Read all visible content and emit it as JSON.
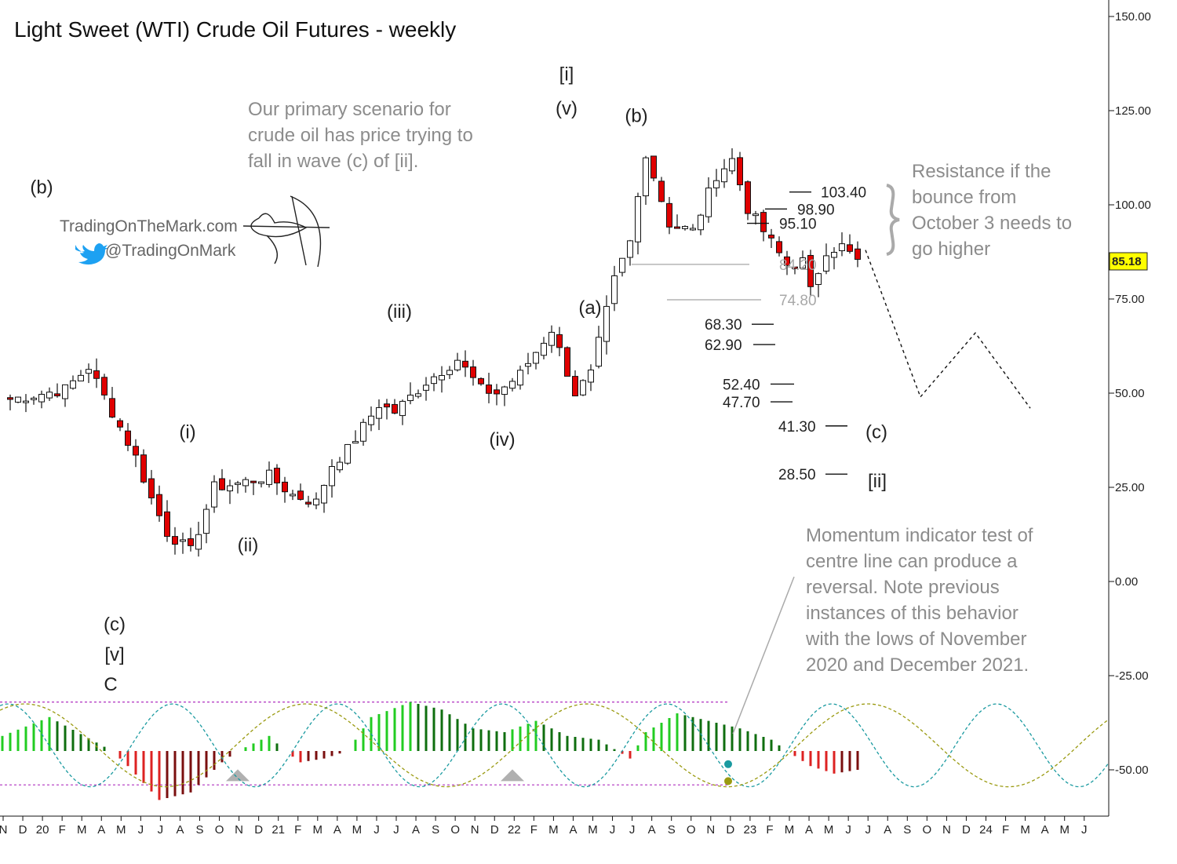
{
  "title": "Light Sweet (WTI) Crude Oil Futures - weekly",
  "branding": {
    "site": "TradingOnTheMark.com",
    "twitter": "@TradingOnMark",
    "logo_icon": "archer-bow-icon",
    "twitter_icon": "twitter-bird-icon"
  },
  "annotations": {
    "primary": [
      "Our primary scenario for",
      "crude oil has price trying to",
      "fall in wave (c) of [ii]."
    ],
    "resistance": [
      "Resistance if the",
      "bounce from",
      "October 3 needs to",
      "go higher"
    ],
    "momentum": [
      "Momentum indicator test of",
      "centre line can produce a",
      "reversal. Note previous",
      "instances of this behavior",
      "with the lows of November",
      "2020 and December 2021."
    ]
  },
  "colors": {
    "bear_candle": "#e00000",
    "bull_candle": "#ffffff",
    "bull_hist": "#22cc22",
    "bull_hist_dark": "#0f6e0f",
    "bear_hist": "#dd2222",
    "bear_hist_dark": "#7a0f0f",
    "cycle_teal": "#1a9aa0",
    "cycle_olive": "#9a9a10",
    "band": "#b030c0",
    "price_badge": "#ffff00"
  },
  "chart_data": {
    "type": "candlestick",
    "title": "Light Sweet (WTI) Crude Oil Futures - weekly",
    "y_axis": {
      "ticks": [
        "150.00",
        "125.00",
        "100.00",
        "75.00",
        "50.00",
        "25.00",
        "0.00",
        "-25.00",
        "-50.00"
      ],
      "range": [
        -62,
        153
      ]
    },
    "last_price": "85.18",
    "months": [
      "N",
      "D",
      "20",
      "F",
      "M",
      "A",
      "M",
      "J",
      "J",
      "A",
      "S",
      "O",
      "N",
      "D",
      "21",
      "F",
      "M",
      "A",
      "M",
      "J",
      "J",
      "A",
      "S",
      "O",
      "N",
      "D",
      "22",
      "F",
      "M",
      "A",
      "M",
      "J",
      "J",
      "A",
      "S",
      "O",
      "N",
      "D",
      "23",
      "F",
      "M",
      "A",
      "M",
      "J",
      "J",
      "A",
      "S",
      "O",
      "N",
      "D",
      "24",
      "F",
      "M",
      "A",
      "M",
      "J"
    ],
    "anchors": [
      [
        0,
        48
      ],
      [
        8,
        51
      ],
      [
        11,
        57
      ],
      [
        14,
        45
      ],
      [
        17,
        33
      ],
      [
        19,
        22
      ],
      [
        21,
        13
      ],
      [
        24,
        8
      ],
      [
        27,
        25
      ],
      [
        30,
        26
      ],
      [
        34,
        28
      ],
      [
        37,
        23
      ],
      [
        40,
        21
      ],
      [
        42,
        31
      ],
      [
        44,
        35
      ],
      [
        48,
        47
      ],
      [
        50,
        45
      ],
      [
        54,
        53
      ],
      [
        58,
        59
      ],
      [
        61,
        51
      ],
      [
        63,
        50
      ],
      [
        66,
        55
      ],
      [
        70,
        67
      ],
      [
        73,
        50
      ],
      [
        75,
        55
      ],
      [
        78,
        80
      ],
      [
        80,
        90
      ],
      [
        82,
        114
      ],
      [
        85,
        95
      ],
      [
        88,
        93
      ],
      [
        91,
        108
      ],
      [
        93,
        112
      ],
      [
        95,
        99
      ],
      [
        98,
        90
      ],
      [
        100,
        84
      ],
      [
        102,
        85
      ],
      [
        103,
        77
      ],
      [
        105,
        88
      ],
      [
        107,
        89
      ],
      [
        109,
        85
      ]
    ],
    "wave_labels": [
      {
        "text": "(b)",
        "value": 103
      },
      {
        "text": "(c)",
        "value": -13
      },
      {
        "text": "[v]",
        "value": -21
      },
      {
        "text": "C",
        "value": -29
      },
      {
        "text": "(i)",
        "value": 38
      },
      {
        "text": "(ii)",
        "value": 8
      },
      {
        "text": "(iii)",
        "value": 70
      },
      {
        "text": "(iv)",
        "value": 36
      },
      {
        "text": "[i]",
        "value": 133
      },
      {
        "text": "(v)",
        "value": 124
      },
      {
        "text": "(a)",
        "value": 71
      },
      {
        "text": "(b)",
        "value": 122
      },
      {
        "text": "(c)",
        "value": 38
      },
      {
        "text": "[ii]",
        "value": 25
      }
    ],
    "levels": [
      {
        "label": "103.40",
        "value": 103.4
      },
      {
        "label": "98.90",
        "value": 98.9
      },
      {
        "label": "95.10",
        "value": 95.1
      },
      {
        "label": "84.20",
        "value": 84.2,
        "style": "grey"
      },
      {
        "label": "74.80",
        "value": 74.8,
        "style": "grey"
      },
      {
        "label": "68.30",
        "value": 68.3
      },
      {
        "label": "62.90",
        "value": 62.9
      },
      {
        "label": "52.40",
        "value": 52.4
      },
      {
        "label": "47.70",
        "value": 47.7
      },
      {
        "label": "41.30",
        "value": 41.3
      },
      {
        "label": "28.50",
        "value": 28.5
      }
    ],
    "projection": [
      [
        110,
        88
      ],
      [
        117,
        49
      ],
      [
        124,
        66
      ],
      [
        131,
        46
      ]
    ],
    "indicator": {
      "type": "momentum-histogram",
      "centre": -45,
      "band_top": -32,
      "band_bottom": -54,
      "reversal_markers": [
        "Nov 2020",
        "Dec 2021"
      ]
    }
  }
}
